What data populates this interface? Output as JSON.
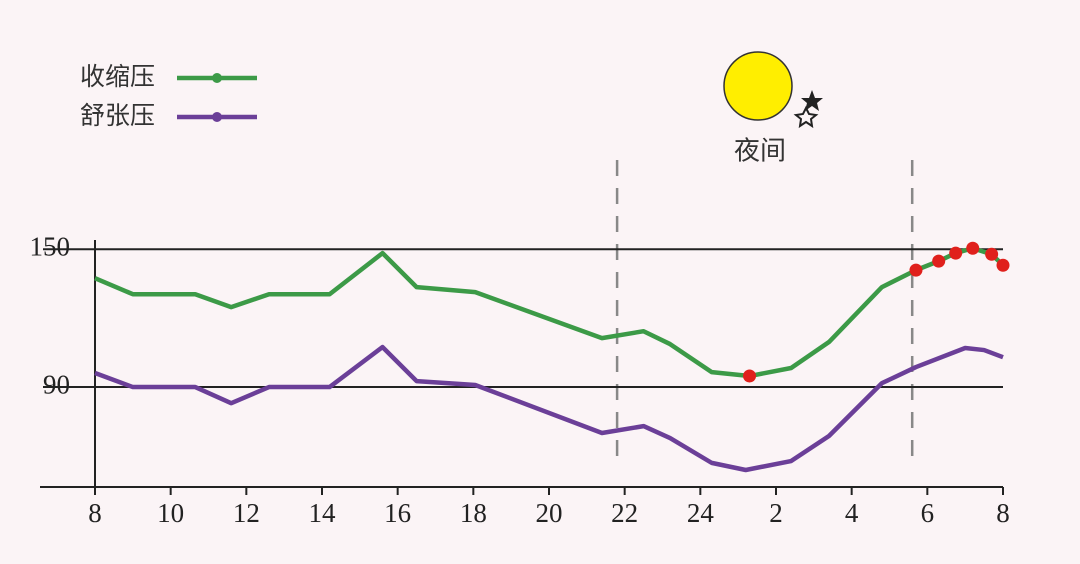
{
  "chart_data": {
    "type": "line",
    "xlim": [
      8,
      32
    ],
    "ylim": [
      46.5,
      154
    ],
    "xticks": [
      8,
      10,
      12,
      14,
      16,
      18,
      20,
      22,
      24,
      {
        "value": 26,
        "label": "2"
      },
      {
        "value": 28,
        "label": "4"
      },
      {
        "value": 30,
        "label": "6"
      },
      {
        "value": 32,
        "label": "8"
      }
    ],
    "yticks": [
      90,
      150
    ],
    "grid": true,
    "legend": "top-left",
    "annotation": {
      "text": "夜间",
      "x_range": [
        21.8,
        29.6
      ]
    },
    "series": [
      {
        "name": "收缩压",
        "color": "#3c9a47",
        "x": [
          8,
          9,
          10.65,
          11.6,
          12.6,
          14.2,
          15.6,
          16.5,
          18.05,
          21.4,
          22.5,
          23.2,
          24.3,
          25.3,
          26.4,
          27.4,
          28.8,
          29.7,
          30.3,
          30.75,
          31.2,
          31.7,
          32
        ],
        "values": [
          137.4,
          130.4,
          130.4,
          124.8,
          130.4,
          130.4,
          148.3,
          133.5,
          131.3,
          111.3,
          114.3,
          108.7,
          96.5,
          94.8,
          98.3,
          109.6,
          133.5,
          140.9,
          144.8,
          148.3,
          150.4,
          147.8,
          143
        ],
        "marker_colors": [
          null,
          null,
          null,
          null,
          null,
          null,
          null,
          null,
          null,
          null,
          null,
          null,
          null,
          "#e0201c",
          null,
          null,
          null,
          "#e0201c",
          "#e0201c",
          "#e0201c",
          "#e0201c",
          "#e0201c",
          "#e0201c"
        ]
      },
      {
        "name": "舒张压",
        "color": "#6b3f98",
        "x": [
          8,
          9,
          10.65,
          11.6,
          12.6,
          14.2,
          15.6,
          16.5,
          18.05,
          21.4,
          22.5,
          23.2,
          24.3,
          25.2,
          26.4,
          27.4,
          28.8,
          29.7,
          31,
          31.5,
          32
        ],
        "values": [
          96.1,
          90,
          90,
          83,
          90,
          90,
          107.4,
          92.6,
          90.9,
          70,
          73,
          67.8,
          57,
          53.9,
          57.8,
          68.7,
          91.7,
          98.7,
          107,
          106.1,
          103
        ]
      }
    ]
  }
}
